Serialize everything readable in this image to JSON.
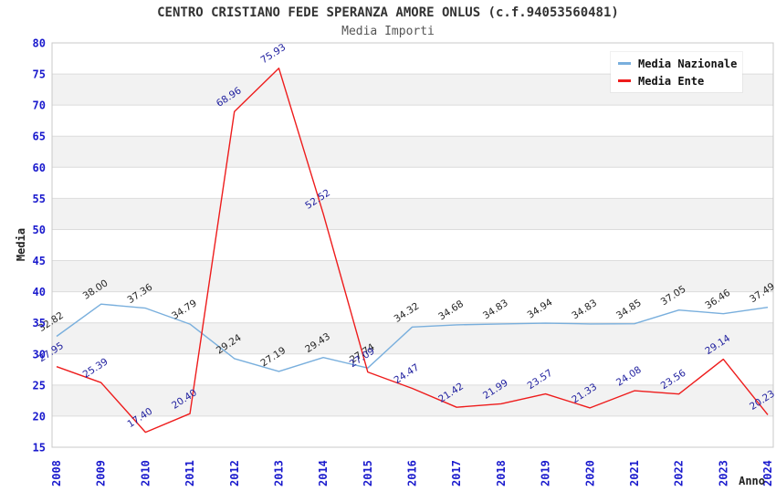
{
  "header": {
    "title": "CENTRO CRISTIANO FEDE SPERANZA AMORE ONLUS (c.f.94053560481)",
    "subtitle": "Media Importi"
  },
  "chart_data": {
    "type": "line",
    "x": [
      "2008",
      "2009",
      "2010",
      "2011",
      "2012",
      "2013",
      "2014",
      "2015",
      "2016",
      "2017",
      "2018",
      "2019",
      "2020",
      "2021",
      "2022",
      "2023",
      "2024"
    ],
    "series": [
      {
        "name": "Media Nazionale",
        "color": "#79afdd",
        "label_color": "#262626",
        "values": [
          32.82,
          38.0,
          37.36,
          34.79,
          29.24,
          27.19,
          29.43,
          27.74,
          34.32,
          34.68,
          34.83,
          34.94,
          34.83,
          34.85,
          37.05,
          36.46,
          37.49
        ]
      },
      {
        "name": "Media Ente",
        "color": "#ee1c1c",
        "label_color": "#1e1e9e",
        "values": [
          27.95,
          25.39,
          17.4,
          20.4,
          68.96,
          75.93,
          52.52,
          27.09,
          24.47,
          21.42,
          21.99,
          23.57,
          21.33,
          24.08,
          23.56,
          29.14,
          20.23
        ]
      }
    ],
    "xlabel": "Anno",
    "ylabel": "Media",
    "ylim": [
      15,
      80
    ],
    "ytick_step": 5,
    "yticks": [
      80,
      75,
      70,
      65,
      60,
      55,
      50,
      45,
      40,
      35,
      30,
      25,
      20,
      15
    ],
    "grid": "horizontal",
    "legend_position": "top-right",
    "value_label_rotation": -33,
    "tick_label_color": "#1a1acd",
    "axis_title_color": "#222222",
    "band_colors": [
      "#ffffff",
      "#f2f2f2"
    ],
    "gridline_color": "#dcdcdc",
    "border_color": "#c8c8c8"
  }
}
